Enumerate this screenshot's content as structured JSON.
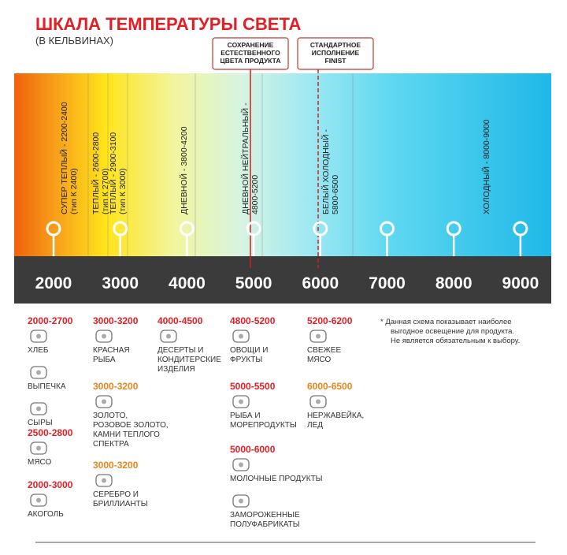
{
  "title": "ШКАЛА ТЕМПЕРАТУРЫ СВЕТА",
  "subtitle": "(В КЕЛЬВИНАХ)",
  "callouts": [
    {
      "lines": [
        "СОХРАНЕНИЕ",
        "ЕСТЕСТВЕННОГО",
        "ЦВЕТА ПРОДУКТА"
      ]
    },
    {
      "lines": [
        "СТАНДАРТНОЕ",
        "ИСПОЛНЕНИЕ",
        "FINIST"
      ]
    }
  ],
  "band_labels": [
    {
      "lines": [
        "СУПЕР ТЕПЛЫЙ - 2200-2400",
        "(тип К 2400)"
      ]
    },
    {
      "lines": [
        "ТЕПЛЫЙ - 2600-2800",
        "(тип К 2700)"
      ]
    },
    {
      "lines": [
        "ТЕПЛЫЙ - 2900-3100",
        "(тип К 3000)"
      ]
    },
    {
      "lines": [
        "ДНЕВНОЙ - 3800-4200"
      ]
    },
    {
      "lines": [
        "ДНЕВНОЙ НЕЙТРАЛЬНЫЙ -",
        "4800-5200"
      ]
    },
    {
      "lines": [
        "БЕЛЫЙ ХОЛОДНЫЙ -",
        "5800-6500"
      ]
    },
    {
      "lines": [
        "ХОЛОДНЫЙ - 8000-9000"
      ]
    }
  ],
  "scale": [
    2000,
    3000,
    4000,
    5000,
    6000,
    7000,
    8000,
    9000
  ],
  "groups": [
    {
      "range": "2000-2700",
      "color": "#e31e24",
      "items": [
        {
          "lines": [
            "ХЛЕБ"
          ]
        },
        {
          "lines": [
            "ВЫПЕЧКА"
          ]
        },
        {
          "lines": [
            "СЫРЫ"
          ]
        }
      ]
    },
    {
      "range": "2500-2800",
      "color": "#e31e24",
      "items": [
        {
          "lines": [
            "МЯСО"
          ]
        }
      ]
    },
    {
      "range": "2000-3000",
      "color": "#e31e24",
      "items": [
        {
          "lines": [
            "АКОГОЛЬ"
          ]
        }
      ]
    },
    {
      "range": "3000-3200",
      "color": "#e31e24",
      "items": [
        {
          "lines": [
            "КРАСНАЯ",
            "РЫБА"
          ]
        }
      ]
    },
    {
      "range": "3000-3200",
      "color": "#e8851c",
      "items": [
        {
          "lines": [
            "ЗОЛОТО,",
            "РОЗОВОЕ ЗОЛОТО,",
            "КАМНИ ТЕПЛОГО",
            "СПЕКТРА"
          ]
        }
      ]
    },
    {
      "range": "3000-3200",
      "color": "#e8851c",
      "items": [
        {
          "lines": [
            "СЕРЕБРО И",
            "БРИЛЛИАНТЫ"
          ]
        }
      ]
    },
    {
      "range": "4000-4500",
      "color": "#e31e24",
      "items": [
        {
          "lines": [
            "ДЕСЕРТЫ И",
            "КОНДИТЕРСКИЕ",
            "ИЗДЕЛИЯ"
          ]
        }
      ]
    },
    {
      "range": "4800-5200",
      "color": "#e31e24",
      "items": [
        {
          "lines": [
            "ОВОЩИ И",
            "ФРУКТЫ"
          ]
        }
      ]
    },
    {
      "range": "5000-5500",
      "color": "#e31e24",
      "items": [
        {
          "lines": [
            "РЫБА И",
            "МОРЕПРОДУКТЫ"
          ]
        }
      ]
    },
    {
      "range": "5000-6000",
      "color": "#e31e24",
      "items": [
        {
          "lines": [
            "МОЛОЧНЫЕ ПРОДУКТЫ"
          ]
        },
        {
          "lines": [
            "ЗАМОРОЖЕННЫЕ",
            "ПОЛУФАБРИКАТЫ"
          ]
        }
      ]
    },
    {
      "range": "5200-6200",
      "color": "#e31e24",
      "items": [
        {
          "lines": [
            "СВЕЖЕЕ",
            "МЯСО"
          ]
        }
      ]
    },
    {
      "range": "6000-6500",
      "color": "#e8851c",
      "items": [
        {
          "lines": [
            "НЕРЖАВЕЙКА,",
            "ЛЕД"
          ]
        }
      ]
    }
  ],
  "note": [
    "*  Данная схема показывает наиболее",
    "выгодное освещение для продукта.",
    "Не является обязательным к выбору."
  ]
}
